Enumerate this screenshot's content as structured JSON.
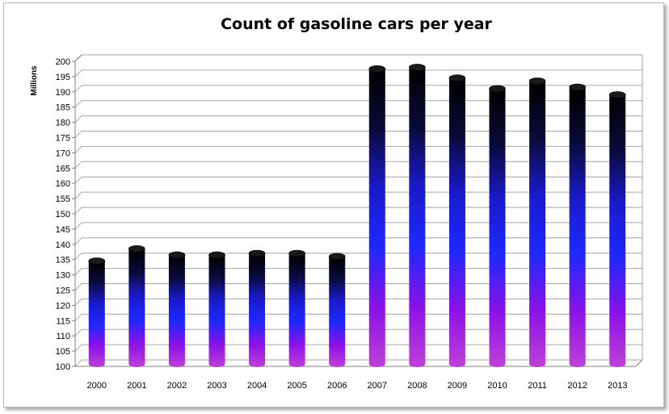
{
  "chart_data": {
    "type": "bar",
    "title": "Count of gasoline cars per year",
    "xlabel": "",
    "ylabel": "Millions",
    "categories": [
      "2000",
      "2001",
      "2002",
      "2003",
      "2004",
      "2005",
      "2006",
      "2007",
      "2008",
      "2009",
      "2010",
      "2011",
      "2012",
      "2013"
    ],
    "values": [
      134,
      138,
      136,
      136,
      136.5,
      136.5,
      135.5,
      197,
      197.5,
      194,
      190.5,
      193,
      191,
      188.5
    ],
    "ylim": [
      100,
      200
    ],
    "ytick_step": 5,
    "grid": true,
    "legend": "none",
    "bar_gradient": [
      "#000000",
      "#0a0a3a",
      "#1a1acc",
      "#1e28ff",
      "#8a12e8",
      "#c040d8"
    ]
  }
}
